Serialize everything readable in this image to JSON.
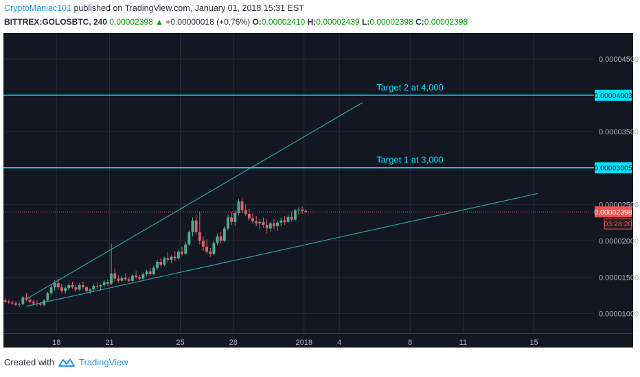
{
  "header": {
    "author": "CryptoManiac101",
    "published": "published on TradingView.com, January 01, 2018 15:31 EST"
  },
  "ohlc": {
    "symbol": "BITTREX:GOLOSBTC, 240",
    "last": "0.00002398",
    "change": "+0.00000018 (+0.76%)",
    "o_label": "O:",
    "o": "0.00002410",
    "h_label": "H:",
    "h": "0.00002439",
    "l_label": "L:",
    "l": "0.00002398",
    "c_label": "C:",
    "c": "0.00002398"
  },
  "footer": {
    "created": "Created with",
    "brand": "TradingView"
  },
  "colors": {
    "background": "#131722",
    "grid": "#262b3e",
    "up": "#4caf8e",
    "down": "#e0626b",
    "target": "#00e5ff",
    "trend": "#2aa3a3",
    "price": "#ef5350",
    "axis_text": "#b2b5be"
  },
  "chart_data": {
    "type": "candlestick",
    "x_tick_labels": [
      "18",
      "21",
      "25",
      "28",
      "2018",
      "4",
      "8",
      "11",
      "15"
    ],
    "y_tick_labels": [
      "0.00004500",
      "0.00003500",
      "0.00002500",
      "0.00002000",
      "0.00001500",
      "0.00001000"
    ],
    "y_tick_values": [
      4.5e-05,
      3.5e-05,
      2.5e-05,
      2e-05,
      1.5e-05,
      1e-05
    ],
    "ylim": [
      7.3e-06,
      4.86e-05
    ],
    "xlim": [
      15.0,
      48.4
    ],
    "x_tick_positions": [
      18,
      21,
      25,
      28,
      32,
      34,
      38,
      41,
      45
    ],
    "candles": [
      {
        "t": 15.1,
        "o": 1.18e-05,
        "h": 1.21e-05,
        "l": 1.15e-05,
        "c": 1.16e-05
      },
      {
        "t": 15.3,
        "o": 1.16e-05,
        "h": 1.19e-05,
        "l": 1.13e-05,
        "c": 1.15e-05
      },
      {
        "t": 15.5,
        "o": 1.15e-05,
        "h": 1.18e-05,
        "l": 1.12e-05,
        "c": 1.14e-05
      },
      {
        "t": 15.7,
        "o": 1.14e-05,
        "h": 1.17e-05,
        "l": 1.1e-05,
        "c": 1.12e-05
      },
      {
        "t": 15.9,
        "o": 1.12e-05,
        "h": 1.15e-05,
        "l": 1.09e-05,
        "c": 1.13e-05
      },
      {
        "t": 16.1,
        "o": 1.13e-05,
        "h": 1.24e-05,
        "l": 1.11e-05,
        "c": 1.22e-05
      },
      {
        "t": 16.3,
        "o": 1.22e-05,
        "h": 1.28e-05,
        "l": 1.17e-05,
        "c": 1.19e-05
      },
      {
        "t": 16.5,
        "o": 1.19e-05,
        "h": 1.22e-05,
        "l": 1.14e-05,
        "c": 1.16e-05
      },
      {
        "t": 16.7,
        "o": 1.16e-05,
        "h": 1.19e-05,
        "l": 1.12e-05,
        "c": 1.14e-05
      },
      {
        "t": 16.9,
        "o": 1.14e-05,
        "h": 1.18e-05,
        "l": 1.11e-05,
        "c": 1.13e-05
      },
      {
        "t": 17.1,
        "o": 1.13e-05,
        "h": 1.16e-05,
        "l": 1.1e-05,
        "c": 1.12e-05
      },
      {
        "t": 17.3,
        "o": 1.12e-05,
        "h": 1.2e-05,
        "l": 1.1e-05,
        "c": 1.18e-05
      },
      {
        "t": 17.5,
        "o": 1.18e-05,
        "h": 1.3e-05,
        "l": 1.16e-05,
        "c": 1.28e-05
      },
      {
        "t": 17.7,
        "o": 1.28e-05,
        "h": 1.4e-05,
        "l": 1.25e-05,
        "c": 1.36e-05
      },
      {
        "t": 17.9,
        "o": 1.36e-05,
        "h": 1.46e-05,
        "l": 1.32e-05,
        "c": 1.42e-05
      },
      {
        "t": 18.1,
        "o": 1.42e-05,
        "h": 1.48e-05,
        "l": 1.33e-05,
        "c": 1.36e-05
      },
      {
        "t": 18.3,
        "o": 1.36e-05,
        "h": 1.4e-05,
        "l": 1.28e-05,
        "c": 1.31e-05
      },
      {
        "t": 18.5,
        "o": 1.31e-05,
        "h": 1.38e-05,
        "l": 1.27e-05,
        "c": 1.35e-05
      },
      {
        "t": 18.7,
        "o": 1.35e-05,
        "h": 1.42e-05,
        "l": 1.32e-05,
        "c": 1.39e-05
      },
      {
        "t": 18.9,
        "o": 1.39e-05,
        "h": 1.44e-05,
        "l": 1.34e-05,
        "c": 1.36e-05
      },
      {
        "t": 19.1,
        "o": 1.36e-05,
        "h": 1.4e-05,
        "l": 1.3e-05,
        "c": 1.33e-05
      },
      {
        "t": 19.3,
        "o": 1.33e-05,
        "h": 1.42e-05,
        "l": 1.31e-05,
        "c": 1.39e-05
      },
      {
        "t": 19.5,
        "o": 1.39e-05,
        "h": 1.44e-05,
        "l": 1.34e-05,
        "c": 1.36e-05
      },
      {
        "t": 19.7,
        "o": 1.36e-05,
        "h": 1.38e-05,
        "l": 1.29e-05,
        "c": 1.31e-05
      },
      {
        "t": 19.9,
        "o": 1.31e-05,
        "h": 1.35e-05,
        "l": 1.27e-05,
        "c": 1.33e-05
      },
      {
        "t": 20.1,
        "o": 1.33e-05,
        "h": 1.4e-05,
        "l": 1.31e-05,
        "c": 1.38e-05
      },
      {
        "t": 20.3,
        "o": 1.38e-05,
        "h": 1.43e-05,
        "l": 1.34e-05,
        "c": 1.37e-05
      },
      {
        "t": 20.5,
        "o": 1.37e-05,
        "h": 1.41e-05,
        "l": 1.33e-05,
        "c": 1.39e-05
      },
      {
        "t": 20.7,
        "o": 1.39e-05,
        "h": 1.46e-05,
        "l": 1.36e-05,
        "c": 1.43e-05
      },
      {
        "t": 20.9,
        "o": 1.43e-05,
        "h": 1.47e-05,
        "l": 1.38e-05,
        "c": 1.41e-05
      },
      {
        "t": 21.1,
        "o": 1.41e-05,
        "h": 1.96e-05,
        "l": 1.39e-05,
        "c": 1.55e-05
      },
      {
        "t": 21.3,
        "o": 1.55e-05,
        "h": 1.62e-05,
        "l": 1.44e-05,
        "c": 1.48e-05
      },
      {
        "t": 21.5,
        "o": 1.48e-05,
        "h": 1.53e-05,
        "l": 1.42e-05,
        "c": 1.45e-05
      },
      {
        "t": 21.7,
        "o": 1.45e-05,
        "h": 1.52e-05,
        "l": 1.43e-05,
        "c": 1.49e-05
      },
      {
        "t": 21.9,
        "o": 1.49e-05,
        "h": 1.55e-05,
        "l": 1.45e-05,
        "c": 1.47e-05
      },
      {
        "t": 22.1,
        "o": 1.47e-05,
        "h": 1.5e-05,
        "l": 1.43e-05,
        "c": 1.45e-05
      },
      {
        "t": 22.3,
        "o": 1.45e-05,
        "h": 1.54e-05,
        "l": 1.44e-05,
        "c": 1.52e-05
      },
      {
        "t": 22.5,
        "o": 1.52e-05,
        "h": 1.58e-05,
        "l": 1.48e-05,
        "c": 1.5e-05
      },
      {
        "t": 22.7,
        "o": 1.5e-05,
        "h": 1.53e-05,
        "l": 1.46e-05,
        "c": 1.48e-05
      },
      {
        "t": 22.9,
        "o": 1.48e-05,
        "h": 1.56e-05,
        "l": 1.47e-05,
        "c": 1.54e-05
      },
      {
        "t": 23.1,
        "o": 1.54e-05,
        "h": 1.6e-05,
        "l": 1.51e-05,
        "c": 1.58e-05
      },
      {
        "t": 23.3,
        "o": 1.58e-05,
        "h": 1.62e-05,
        "l": 1.52e-05,
        "c": 1.54e-05
      },
      {
        "t": 23.5,
        "o": 1.54e-05,
        "h": 1.66e-05,
        "l": 1.53e-05,
        "c": 1.63e-05
      },
      {
        "t": 23.7,
        "o": 1.63e-05,
        "h": 1.74e-05,
        "l": 1.6e-05,
        "c": 1.71e-05
      },
      {
        "t": 23.9,
        "o": 1.71e-05,
        "h": 1.76e-05,
        "l": 1.64e-05,
        "c": 1.67e-05
      },
      {
        "t": 24.1,
        "o": 1.67e-05,
        "h": 1.78e-05,
        "l": 1.65e-05,
        "c": 1.76e-05
      },
      {
        "t": 24.3,
        "o": 1.76e-05,
        "h": 1.84e-05,
        "l": 1.7e-05,
        "c": 1.74e-05
      },
      {
        "t": 24.5,
        "o": 1.74e-05,
        "h": 1.8e-05,
        "l": 1.69e-05,
        "c": 1.78e-05
      },
      {
        "t": 24.7,
        "o": 1.78e-05,
        "h": 1.86e-05,
        "l": 1.72e-05,
        "c": 1.76e-05
      },
      {
        "t": 24.9,
        "o": 1.76e-05,
        "h": 1.88e-05,
        "l": 1.74e-05,
        "c": 1.85e-05
      },
      {
        "t": 25.1,
        "o": 1.85e-05,
        "h": 1.92e-05,
        "l": 1.8e-05,
        "c": 1.82e-05
      },
      {
        "t": 25.3,
        "o": 1.82e-05,
        "h": 1.98e-05,
        "l": 1.81e-05,
        "c": 1.95e-05
      },
      {
        "t": 25.5,
        "o": 1.95e-05,
        "h": 2.15e-05,
        "l": 1.93e-05,
        "c": 2.12e-05
      },
      {
        "t": 25.7,
        "o": 2.12e-05,
        "h": 2.32e-05,
        "l": 2.06e-05,
        "c": 2.28e-05
      },
      {
        "t": 25.9,
        "o": 2.28e-05,
        "h": 2.36e-05,
        "l": 2.08e-05,
        "c": 2.12e-05
      },
      {
        "t": 26.1,
        "o": 2.12e-05,
        "h": 2.4e-05,
        "l": 1.95e-05,
        "c": 2e-05
      },
      {
        "t": 26.3,
        "o": 2e-05,
        "h": 2.06e-05,
        "l": 1.86e-05,
        "c": 1.92e-05
      },
      {
        "t": 26.5,
        "o": 1.92e-05,
        "h": 2.02e-05,
        "l": 1.82e-05,
        "c": 1.85e-05
      },
      {
        "t": 26.7,
        "o": 1.85e-05,
        "h": 1.9e-05,
        "l": 1.78e-05,
        "c": 1.82e-05
      },
      {
        "t": 26.9,
        "o": 1.82e-05,
        "h": 2e-05,
        "l": 1.8e-05,
        "c": 1.97e-05
      },
      {
        "t": 27.1,
        "o": 1.97e-05,
        "h": 2.1e-05,
        "l": 1.94e-05,
        "c": 2.06e-05
      },
      {
        "t": 27.3,
        "o": 2.06e-05,
        "h": 2.12e-05,
        "l": 1.96e-05,
        "c": 2e-05
      },
      {
        "t": 27.5,
        "o": 2e-05,
        "h": 2.2e-05,
        "l": 1.98e-05,
        "c": 2.17e-05
      },
      {
        "t": 27.7,
        "o": 2.17e-05,
        "h": 2.36e-05,
        "l": 2.14e-05,
        "c": 2.32e-05
      },
      {
        "t": 27.9,
        "o": 2.32e-05,
        "h": 2.4e-05,
        "l": 2.22e-05,
        "c": 2.26e-05
      },
      {
        "t": 28.1,
        "o": 2.26e-05,
        "h": 2.42e-05,
        "l": 2.2e-05,
        "c": 2.38e-05
      },
      {
        "t": 28.3,
        "o": 2.38e-05,
        "h": 2.58e-05,
        "l": 2.35e-05,
        "c": 2.54e-05
      },
      {
        "t": 28.5,
        "o": 2.54e-05,
        "h": 2.6e-05,
        "l": 2.38e-05,
        "c": 2.42e-05
      },
      {
        "t": 28.7,
        "o": 2.42e-05,
        "h": 2.5e-05,
        "l": 2.34e-05,
        "c": 2.37e-05
      },
      {
        "t": 28.9,
        "o": 2.37e-05,
        "h": 2.44e-05,
        "l": 2.28e-05,
        "c": 2.31e-05
      },
      {
        "t": 29.1,
        "o": 2.31e-05,
        "h": 2.38e-05,
        "l": 2.24e-05,
        "c": 2.27e-05
      },
      {
        "t": 29.3,
        "o": 2.27e-05,
        "h": 2.34e-05,
        "l": 2.2e-05,
        "c": 2.24e-05
      },
      {
        "t": 29.5,
        "o": 2.24e-05,
        "h": 2.3e-05,
        "l": 2.16e-05,
        "c": 2.26e-05
      },
      {
        "t": 29.7,
        "o": 2.26e-05,
        "h": 2.32e-05,
        "l": 2.18e-05,
        "c": 2.22e-05
      },
      {
        "t": 29.9,
        "o": 2.22e-05,
        "h": 2.3e-05,
        "l": 2.1e-05,
        "c": 2.17e-05
      },
      {
        "t": 30.1,
        "o": 2.17e-05,
        "h": 2.26e-05,
        "l": 2.12e-05,
        "c": 2.24e-05
      },
      {
        "t": 30.3,
        "o": 2.24e-05,
        "h": 2.3e-05,
        "l": 2.16e-05,
        "c": 2.2e-05
      },
      {
        "t": 30.5,
        "o": 2.2e-05,
        "h": 2.28e-05,
        "l": 2.14e-05,
        "c": 2.25e-05
      },
      {
        "t": 30.7,
        "o": 2.25e-05,
        "h": 2.32e-05,
        "l": 2.2e-05,
        "c": 2.28e-05
      },
      {
        "t": 30.9,
        "o": 2.28e-05,
        "h": 2.34e-05,
        "l": 2.22e-05,
        "c": 2.26e-05
      },
      {
        "t": 31.1,
        "o": 2.26e-05,
        "h": 2.36e-05,
        "l": 2.24e-05,
        "c": 2.33e-05
      },
      {
        "t": 31.3,
        "o": 2.33e-05,
        "h": 2.4e-05,
        "l": 2.26e-05,
        "c": 2.29e-05
      },
      {
        "t": 31.5,
        "o": 2.29e-05,
        "h": 2.44e-05,
        "l": 2.27e-05,
        "c": 2.42e-05
      },
      {
        "t": 31.7,
        "o": 2.42e-05,
        "h": 2.46e-05,
        "l": 2.36e-05,
        "c": 2.43e-05
      },
      {
        "t": 31.9,
        "o": 2.43e-05,
        "h": 2.47e-05,
        "l": 2.37e-05,
        "c": 2.41e-05
      },
      {
        "t": 32.1,
        "o": 2.41e-05,
        "h": 2.44e-05,
        "l": 2.38e-05,
        "c": 2.4e-05
      }
    ],
    "target_lines": [
      {
        "label": "Target 2 at 4,000",
        "value": 4.003e-05,
        "axis_label": "0.00004003"
      },
      {
        "label": "Target 1 at 3,000",
        "value": 3.005e-05,
        "axis_label": "0.00003005"
      }
    ],
    "trend_lines": [
      {
        "from": {
          "t": 16.3,
          "v": 1.2e-05
        },
        "to": {
          "t": 35.3,
          "v": 3.9e-05
        }
      },
      {
        "from": {
          "t": 16.3,
          "v": 1.1e-05
        },
        "to": {
          "t": 45.2,
          "v": 2.65e-05
        }
      }
    ],
    "current_price": {
      "value": 2.398e-05,
      "label": "0.00002398",
      "countdown": "03:28:20"
    }
  }
}
